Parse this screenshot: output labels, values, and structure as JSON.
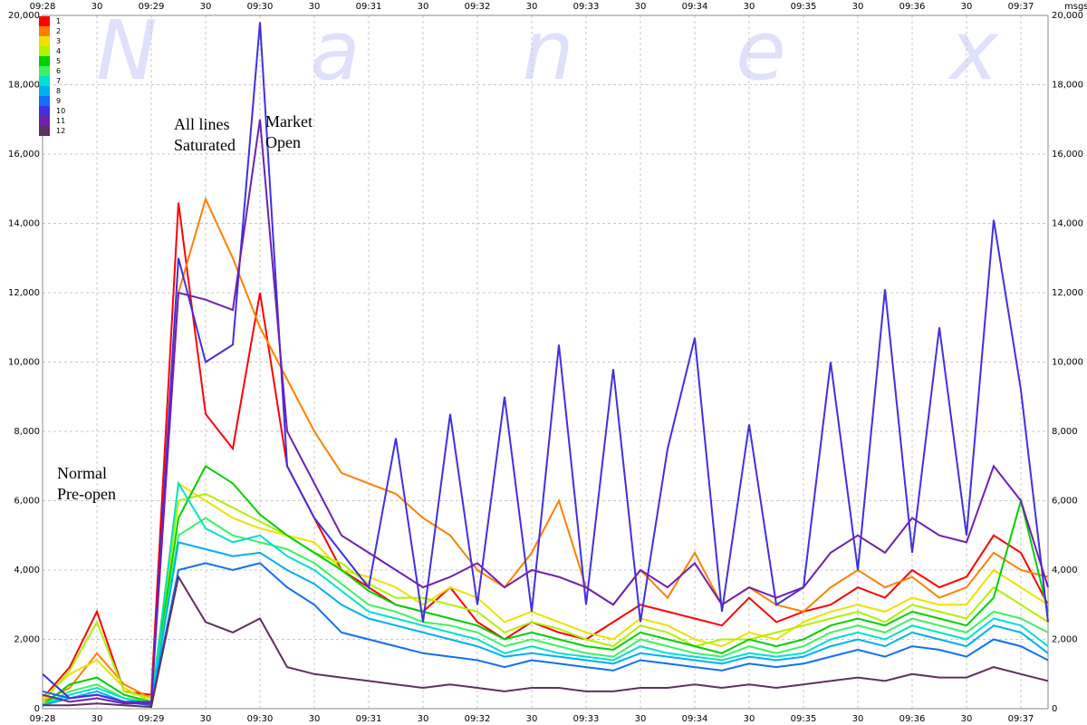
{
  "chart_data": {
    "type": "line",
    "watermark": [
      "N",
      "a",
      "n",
      "e",
      "x"
    ],
    "y_label": "msgs",
    "annotations": [
      [
        "All lines",
        "Saturated"
      ],
      [
        "Market",
        "Open"
      ],
      [
        "Normal",
        "Pre-open"
      ]
    ],
    "x": [
      "09:28:00",
      "09:28:15",
      "09:28:30",
      "09:28:45",
      "09:29:00",
      "09:29:15",
      "09:29:30",
      "09:29:45",
      "09:30:00",
      "09:30:15",
      "09:30:30",
      "09:30:45",
      "09:31:00",
      "09:31:15",
      "09:31:30",
      "09:31:45",
      "09:32:00",
      "09:32:15",
      "09:32:30",
      "09:32:45",
      "09:33:00",
      "09:33:15",
      "09:33:30",
      "09:33:45",
      "09:34:00",
      "09:34:15",
      "09:34:30",
      "09:34:45",
      "09:35:00",
      "09:35:15",
      "09:35:30",
      "09:35:45",
      "09:36:00",
      "09:36:15",
      "09:36:30",
      "09:36:45",
      "09:37:00",
      "09:37:15"
    ],
    "xlim": [
      "09:28:00",
      "09:37:15"
    ],
    "xticks": [
      {
        "value": "09:28:00",
        "label": "09:28"
      },
      {
        "value": "09:28:30",
        "label": "30"
      },
      {
        "value": "09:29:00",
        "label": "09:29"
      },
      {
        "value": "09:29:30",
        "label": "30"
      },
      {
        "value": "09:30:00",
        "label": "09:30"
      },
      {
        "value": "09:30:30",
        "label": "30"
      },
      {
        "value": "09:31:00",
        "label": "09:31"
      },
      {
        "value": "09:31:30",
        "label": "30"
      },
      {
        "value": "09:32:00",
        "label": "09:32"
      },
      {
        "value": "09:32:30",
        "label": "30"
      },
      {
        "value": "09:33:00",
        "label": "09:33"
      },
      {
        "value": "09:33:30",
        "label": "30"
      },
      {
        "value": "09:34:00",
        "label": "09:34"
      },
      {
        "value": "09:34:30",
        "label": "30"
      },
      {
        "value": "09:35:00",
        "label": "09:35"
      },
      {
        "value": "09:35:30",
        "label": "30"
      },
      {
        "value": "09:36:00",
        "label": "09:36"
      },
      {
        "value": "09:36:30",
        "label": "30"
      },
      {
        "value": "09:37:00",
        "label": "09:37"
      }
    ],
    "ylim": [
      0,
      20000
    ],
    "yticks": [
      0,
      {
        "value": 2000,
        "label": "2,000"
      },
      {
        "value": 4000,
        "label": "4,000"
      },
      {
        "value": 6000,
        "label": "6,000"
      },
      {
        "value": 8000,
        "label": "8,000"
      },
      {
        "value": 10000,
        "label": "10,000"
      },
      {
        "value": 12000,
        "label": "12,000"
      },
      {
        "value": 14000,
        "label": "14,000"
      },
      {
        "value": 16000,
        "label": "16,000"
      },
      {
        "value": 18000,
        "label": "18,000"
      },
      {
        "value": 20000,
        "label": "20,000"
      }
    ],
    "grid": true,
    "legend": "top-left",
    "series": [
      {
        "name": "1",
        "color": "#ff0000",
        "values": [
          300,
          1200,
          2800,
          500,
          400,
          14600,
          8500,
          7500,
          12000,
          7000,
          5500,
          4000,
          3500,
          3000,
          2800,
          3500,
          2500,
          2000,
          2500,
          2200,
          2000,
          2500,
          3000,
          2800,
          2600,
          2400,
          3200,
          2500,
          2800,
          3000,
          3500,
          3200,
          4000,
          3500,
          3800,
          5000,
          4500,
          3000
        ]
      },
      {
        "name": "2",
        "color": "#ff8000",
        "values": [
          200,
          600,
          1600,
          700,
          300,
          12000,
          14700,
          13000,
          11000,
          9500,
          8000,
          6800,
          6500,
          6200,
          5500,
          5000,
          4000,
          3500,
          4500,
          6000,
          3500,
          3000,
          4000,
          3200,
          4500,
          3000,
          3500,
          3000,
          2800,
          3500,
          4000,
          3500,
          3800,
          3200,
          3500,
          4500,
          4000,
          3800
        ]
      },
      {
        "name": "3",
        "color": "#f0e000",
        "values": [
          300,
          1000,
          1400,
          600,
          200,
          6500,
          6000,
          5500,
          5200,
          5000,
          4800,
          4000,
          3800,
          3500,
          3000,
          3500,
          3200,
          2500,
          2800,
          2500,
          2200,
          2000,
          2600,
          2400,
          2000,
          1800,
          2200,
          2000,
          2500,
          2800,
          3000,
          2800,
          3200,
          3000,
          3000,
          4000,
          3500,
          3000
        ]
      },
      {
        "name": "4",
        "color": "#b0f000",
        "values": [
          200,
          1100,
          2500,
          500,
          300,
          6000,
          6200,
          5800,
          5400,
          5000,
          4500,
          4200,
          3600,
          3200,
          3200,
          3000,
          2800,
          2200,
          2500,
          2300,
          2000,
          1800,
          2400,
          2200,
          1800,
          2000,
          2000,
          2200,
          2400,
          2600,
          2800,
          2500,
          3000,
          2800,
          2600,
          3500,
          3000,
          2500
        ]
      },
      {
        "name": "5",
        "color": "#00d000",
        "values": [
          100,
          700,
          900,
          400,
          200,
          5500,
          7000,
          6500,
          5600,
          5000,
          4500,
          4000,
          3400,
          3000,
          2800,
          2600,
          2400,
          2000,
          2200,
          2000,
          1800,
          1700,
          2200,
          2000,
          1800,
          1600,
          2000,
          1800,
          2000,
          2400,
          2600,
          2400,
          2800,
          2600,
          2400,
          3200,
          6000,
          2800
        ]
      },
      {
        "name": "6",
        "color": "#40f060",
        "values": [
          100,
          500,
          700,
          300,
          200,
          5000,
          5500,
          5000,
          4800,
          4600,
          4200,
          3600,
          3000,
          2800,
          2500,
          2400,
          2200,
          1800,
          2000,
          1800,
          1600,
          1500,
          2000,
          1800,
          1600,
          1500,
          1800,
          1600,
          1800,
          2200,
          2400,
          2200,
          2600,
          2400,
          2200,
          2800,
          2600,
          2200
        ]
      },
      {
        "name": "7",
        "color": "#00e0d0",
        "values": [
          100,
          400,
          600,
          300,
          100,
          6500,
          5200,
          4800,
          5000,
          4400,
          4000,
          3400,
          2800,
          2600,
          2400,
          2200,
          2000,
          1600,
          1800,
          1600,
          1500,
          1400,
          1800,
          1600,
          1500,
          1400,
          1600,
          1500,
          1600,
          2000,
          2200,
          2000,
          2400,
          2200,
          2000,
          2600,
          2400,
          1800
        ]
      },
      {
        "name": "8",
        "color": "#00b0f0",
        "values": [
          100,
          300,
          500,
          200,
          100,
          4800,
          4600,
          4400,
          4500,
          4000,
          3600,
          3000,
          2600,
          2400,
          2200,
          2000,
          1800,
          1500,
          1600,
          1500,
          1400,
          1300,
          1600,
          1500,
          1400,
          1300,
          1500,
          1400,
          1500,
          1800,
          2000,
          1800,
          2200,
          2000,
          1800,
          2400,
          2200,
          1600
        ]
      },
      {
        "name": "9",
        "color": "#1070f0",
        "values": [
          500,
          300,
          400,
          200,
          100,
          4000,
          4200,
          4000,
          4200,
          3500,
          3000,
          2200,
          2000,
          1800,
          1600,
          1500,
          1400,
          1200,
          1400,
          1300,
          1200,
          1100,
          1400,
          1300,
          1200,
          1100,
          1300,
          1200,
          1300,
          1500,
          1700,
          1500,
          1800,
          1700,
          1500,
          2000,
          1800,
          1400
        ]
      },
      {
        "name": "10",
        "color": "#4030e0",
        "values": [
          1000,
          300,
          400,
          200,
          200,
          13000,
          10000,
          10500,
          19800,
          7000,
          5500,
          4500,
          3500,
          7800,
          2500,
          8500,
          3000,
          9000,
          2800,
          10500,
          3000,
          9800,
          2500,
          7500,
          10700,
          2800,
          8200,
          3000,
          3500,
          10000,
          4000,
          12100,
          4500,
          11000,
          5000,
          14100,
          9200,
          2500
        ]
      },
      {
        "name": "11",
        "color": "#7020b0",
        "values": [
          400,
          200,
          300,
          150,
          150,
          12000,
          11800,
          11500,
          17000,
          8000,
          6500,
          5000,
          4500,
          4000,
          3500,
          3800,
          4200,
          3500,
          4000,
          3800,
          3500,
          3000,
          4000,
          3500,
          4200,
          3000,
          3500,
          3200,
          3500,
          4500,
          5000,
          4500,
          5500,
          5000,
          4800,
          7000,
          6000,
          3500
        ]
      },
      {
        "name": "12",
        "color": "#603060",
        "values": [
          100,
          100,
          150,
          100,
          50,
          3800,
          2500,
          2200,
          2600,
          1200,
          1000,
          900,
          800,
          700,
          600,
          700,
          600,
          500,
          600,
          600,
          500,
          500,
          600,
          600,
          700,
          600,
          700,
          600,
          700,
          800,
          900,
          800,
          1000,
          900,
          900,
          1200,
          1000,
          800
        ]
      }
    ]
  }
}
